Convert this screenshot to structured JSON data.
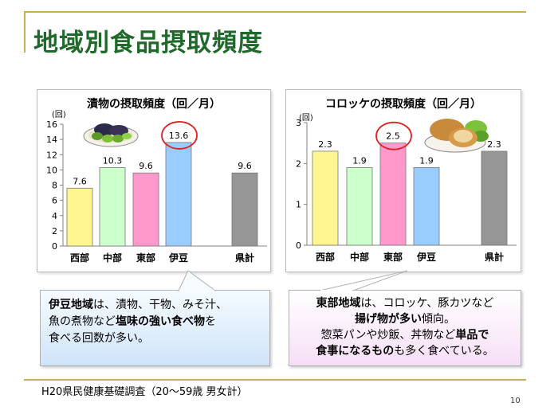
{
  "slide": {
    "title": "地域別食品摂取頻度",
    "source": "H20県民健康基礎調査（20〜59歳 男女計）",
    "page_number": "10"
  },
  "colors": {
    "title": "#1f6a2a",
    "accent_rule": "#c9b24a",
    "bar_seibu": "#fff68f",
    "bar_chubu": "#ccffcc",
    "bar_tobu": "#ff99cc",
    "bar_izu": "#99ccff",
    "bar_kenkei": "#969696",
    "highlight_circle": "#e02020"
  },
  "chart_data": [
    {
      "type": "bar",
      "title": "漬物の摂取頻度（回／月）",
      "ylabel": "(回)",
      "categories": [
        "西部",
        "中部",
        "東部",
        "伊豆",
        "県計"
      ],
      "values": [
        7.6,
        10.3,
        9.6,
        13.6,
        9.6
      ],
      "value_labels": [
        "7.6",
        "10.3",
        "9.6",
        "13.6",
        "9.6"
      ],
      "ylim": [
        0,
        16
      ],
      "yticks": [
        "0",
        "2",
        "4",
        "6",
        "8",
        "10",
        "12",
        "14",
        "16"
      ],
      "highlight": "伊豆",
      "grid": false,
      "image": "pickles-plate"
    },
    {
      "type": "bar",
      "title": "コロッケの摂取頻度（回／月）",
      "ylabel": "(回)",
      "categories": [
        "西部",
        "中部",
        "東部",
        "伊豆",
        "県計"
      ],
      "values": [
        2.3,
        1.9,
        2.5,
        1.9,
        2.3
      ],
      "value_labels": [
        "2.3",
        "1.9",
        "2.5",
        "1.9",
        "2.3"
      ],
      "ylim": [
        0,
        3
      ],
      "yticks": [
        "0",
        "1",
        "2",
        "3"
      ],
      "highlight": "東部",
      "grid": false,
      "image": "croquette-plate"
    }
  ],
  "callouts": {
    "izu": {
      "l1_b1": "伊豆地域",
      "l1_t1": "は、漬物、干物、みそ汁、",
      "l2_t1": "魚の煮物など",
      "l2_b1": "塩味の強い食べ物",
      "l2_t2": "を",
      "l3_t1": "食べる回数が多い。"
    },
    "tobu": {
      "l1_b1": "東部地域",
      "l1_t1": "は、コロッケ、豚カツなど",
      "l2_b1": "揚げ物が多い",
      "l2_t1": "傾向。",
      "l3_t1": "惣菜パンや炒飯、丼物など",
      "l3_b1": "単品で",
      "l4_b1": "食事になるもの",
      "l4_t1": "も多く食べている。"
    }
  }
}
